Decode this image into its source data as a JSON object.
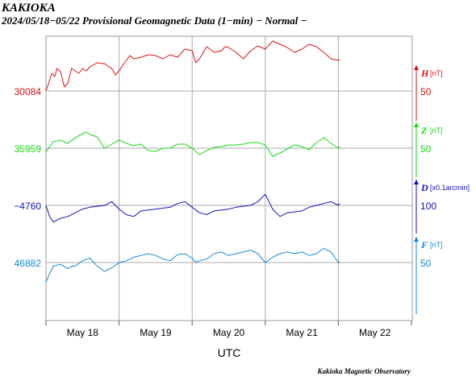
{
  "title": "KAKIOKA",
  "subtitle": "2024/05/18−05/22  Provisional Geomagnetic Data (1−min)  − Normal −",
  "footer": "Kakioka Magnetic Observatory",
  "chart_data": {
    "type": "line",
    "xlabel": "UTC",
    "x_tick_labels": [
      "May 18",
      "May 19",
      "May 20",
      "May 21",
      "May 22"
    ],
    "x_range_days": [
      0,
      5
    ],
    "x_units": "days since 2024-05-18 00:00 UTC",
    "grid": true,
    "series": [
      {
        "name": "H",
        "unit": "[nT]",
        "color": "#dd1111",
        "left_label": "30084",
        "scale_label": "50",
        "x": [
          0,
          0.03,
          0.08,
          0.12,
          0.15,
          0.2,
          0.25,
          0.3,
          0.35,
          0.4,
          0.45,
          0.5,
          0.55,
          0.6,
          0.7,
          0.8,
          0.9,
          0.95,
          1.0,
          1.05,
          1.1,
          1.15,
          1.2,
          1.3,
          1.4,
          1.5,
          1.6,
          1.7,
          1.8,
          1.9,
          2.0,
          2.05,
          2.1,
          2.2,
          2.3,
          2.4,
          2.45,
          2.5,
          2.6,
          2.7,
          2.8,
          2.9,
          3.0,
          3.1,
          3.2,
          3.3,
          3.4,
          3.5,
          3.6,
          3.7,
          3.8,
          3.9,
          4.0,
          4.02
        ],
        "values": [
          0,
          8,
          22,
          18,
          28,
          24,
          5,
          10,
          28,
          25,
          22,
          28,
          25,
          30,
          35,
          34,
          28,
          20,
          25,
          32,
          38,
          44,
          40,
          42,
          45,
          44,
          40,
          45,
          42,
          52,
          50,
          35,
          40,
          55,
          48,
          50,
          55,
          54,
          48,
          40,
          50,
          56,
          52,
          62,
          58,
          54,
          48,
          52,
          58,
          55,
          48,
          40,
          38,
          39
        ]
      },
      {
        "name": "Z",
        "unit": "[nT]",
        "color": "#11dd11",
        "left_label": "35959",
        "scale_label": "50",
        "x": [
          0,
          0.05,
          0.1,
          0.2,
          0.3,
          0.4,
          0.5,
          0.55,
          0.6,
          0.7,
          0.8,
          0.9,
          1.0,
          1.1,
          1.2,
          1.3,
          1.4,
          1.5,
          1.6,
          1.7,
          1.8,
          1.9,
          2.0,
          2.1,
          2.2,
          2.3,
          2.4,
          2.5,
          2.6,
          2.7,
          2.8,
          2.9,
          3.0,
          3.1,
          3.2,
          3.3,
          3.4,
          3.5,
          3.6,
          3.7,
          3.8,
          3.9,
          4.0,
          4.02
        ],
        "values": [
          -5,
          2,
          8,
          10,
          6,
          13,
          18,
          20,
          17,
          14,
          0,
          5,
          10,
          6,
          3,
          5,
          -3,
          -4,
          0,
          0,
          5,
          5,
          0,
          -8,
          -3,
          1,
          2,
          4,
          4,
          5,
          7,
          7,
          4,
          -10,
          -6,
          -1,
          4,
          2,
          -2,
          7,
          13,
          6,
          0,
          2
        ]
      },
      {
        "name": "D",
        "unit": "[x0.1arcmin]",
        "color": "#1111bb",
        "left_label": "−4760",
        "scale_label": "100",
        "x": [
          0,
          0.05,
          0.1,
          0.2,
          0.3,
          0.5,
          0.6,
          0.8,
          0.9,
          1.0,
          1.1,
          1.2,
          1.3,
          1.5,
          1.7,
          1.8,
          1.9,
          2.0,
          2.1,
          2.2,
          2.3,
          2.5,
          2.6,
          2.8,
          2.9,
          3.0,
          3.1,
          3.2,
          3.3,
          3.5,
          3.6,
          3.7,
          3.8,
          3.9,
          4.0,
          4.02
        ],
        "values": [
          0,
          -6,
          -9,
          -7,
          -6,
          -2,
          -1,
          0,
          2,
          -2,
          -5,
          -6,
          -3,
          -2,
          -1,
          1,
          2,
          -1,
          -4,
          -5,
          -3,
          -2,
          -1,
          0,
          2,
          6,
          -2,
          -6,
          -4,
          -3,
          -1,
          0,
          1,
          2,
          0,
          1
        ]
      },
      {
        "name": "F",
        "unit": "[nT]",
        "color": "#1188dd",
        "left_label": "46882",
        "scale_label": "50",
        "x": [
          0,
          0.03,
          0.1,
          0.2,
          0.3,
          0.35,
          0.4,
          0.5,
          0.6,
          0.7,
          0.8,
          0.9,
          1.0,
          1.1,
          1.2,
          1.3,
          1.4,
          1.5,
          1.6,
          1.7,
          1.8,
          1.9,
          2.0,
          2.05,
          2.1,
          2.2,
          2.3,
          2.4,
          2.5,
          2.6,
          2.7,
          2.8,
          2.9,
          3.0,
          3.1,
          3.2,
          3.3,
          3.4,
          3.5,
          3.6,
          3.7,
          3.8,
          3.9,
          4.0,
          4.02
        ],
        "values": [
          -22,
          -16,
          -4,
          -2,
          -7,
          -4,
          -4,
          2,
          5,
          -4,
          -10,
          -6,
          0,
          2,
          6,
          8,
          10,
          8,
          4,
          2,
          9,
          10,
          5,
          0,
          2,
          4,
          10,
          12,
          8,
          10,
          12,
          14,
          10,
          0,
          6,
          10,
          12,
          10,
          12,
          8,
          10,
          16,
          12,
          0,
          1
        ]
      }
    ]
  }
}
